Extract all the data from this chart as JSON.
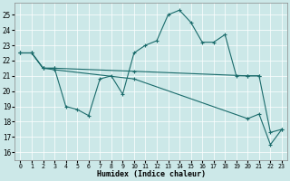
{
  "xlabel": "Humidex (Indice chaleur)",
  "bg_color": "#cce8e8",
  "line_color": "#1a6b6b",
  "x_ticks": [
    0,
    1,
    2,
    3,
    4,
    5,
    6,
    7,
    8,
    9,
    10,
    11,
    12,
    13,
    14,
    15,
    16,
    17,
    18,
    19,
    20,
    21,
    22,
    23
  ],
  "y_ticks": [
    16,
    17,
    18,
    19,
    20,
    21,
    22,
    23,
    24,
    25
  ],
  "xlim": [
    -0.5,
    23.5
  ],
  "ylim": [
    15.5,
    25.8
  ],
  "line1_x": [
    0,
    1,
    2,
    3,
    4,
    5,
    6,
    7,
    8,
    9,
    10,
    11,
    12,
    13,
    14,
    15,
    16,
    17,
    18,
    19,
    20,
    21
  ],
  "line1_y": [
    22.5,
    22.5,
    21.5,
    21.5,
    19.0,
    18.8,
    18.4,
    20.8,
    21.0,
    19.8,
    22.5,
    23.0,
    23.3,
    25.0,
    25.3,
    24.5,
    23.2,
    23.2,
    23.7,
    21.0,
    21.0,
    21.0
  ],
  "line2_x": [
    0,
    1,
    2,
    3,
    10,
    20,
    21,
    22,
    23
  ],
  "line2_y": [
    22.5,
    22.5,
    21.5,
    21.5,
    21.3,
    21.0,
    21.0,
    17.3,
    17.5
  ],
  "line3_x": [
    0,
    1,
    2,
    3,
    10,
    20,
    21,
    22,
    23
  ],
  "line3_y": [
    22.5,
    22.5,
    21.5,
    21.4,
    20.8,
    18.2,
    18.5,
    16.5,
    17.5
  ]
}
